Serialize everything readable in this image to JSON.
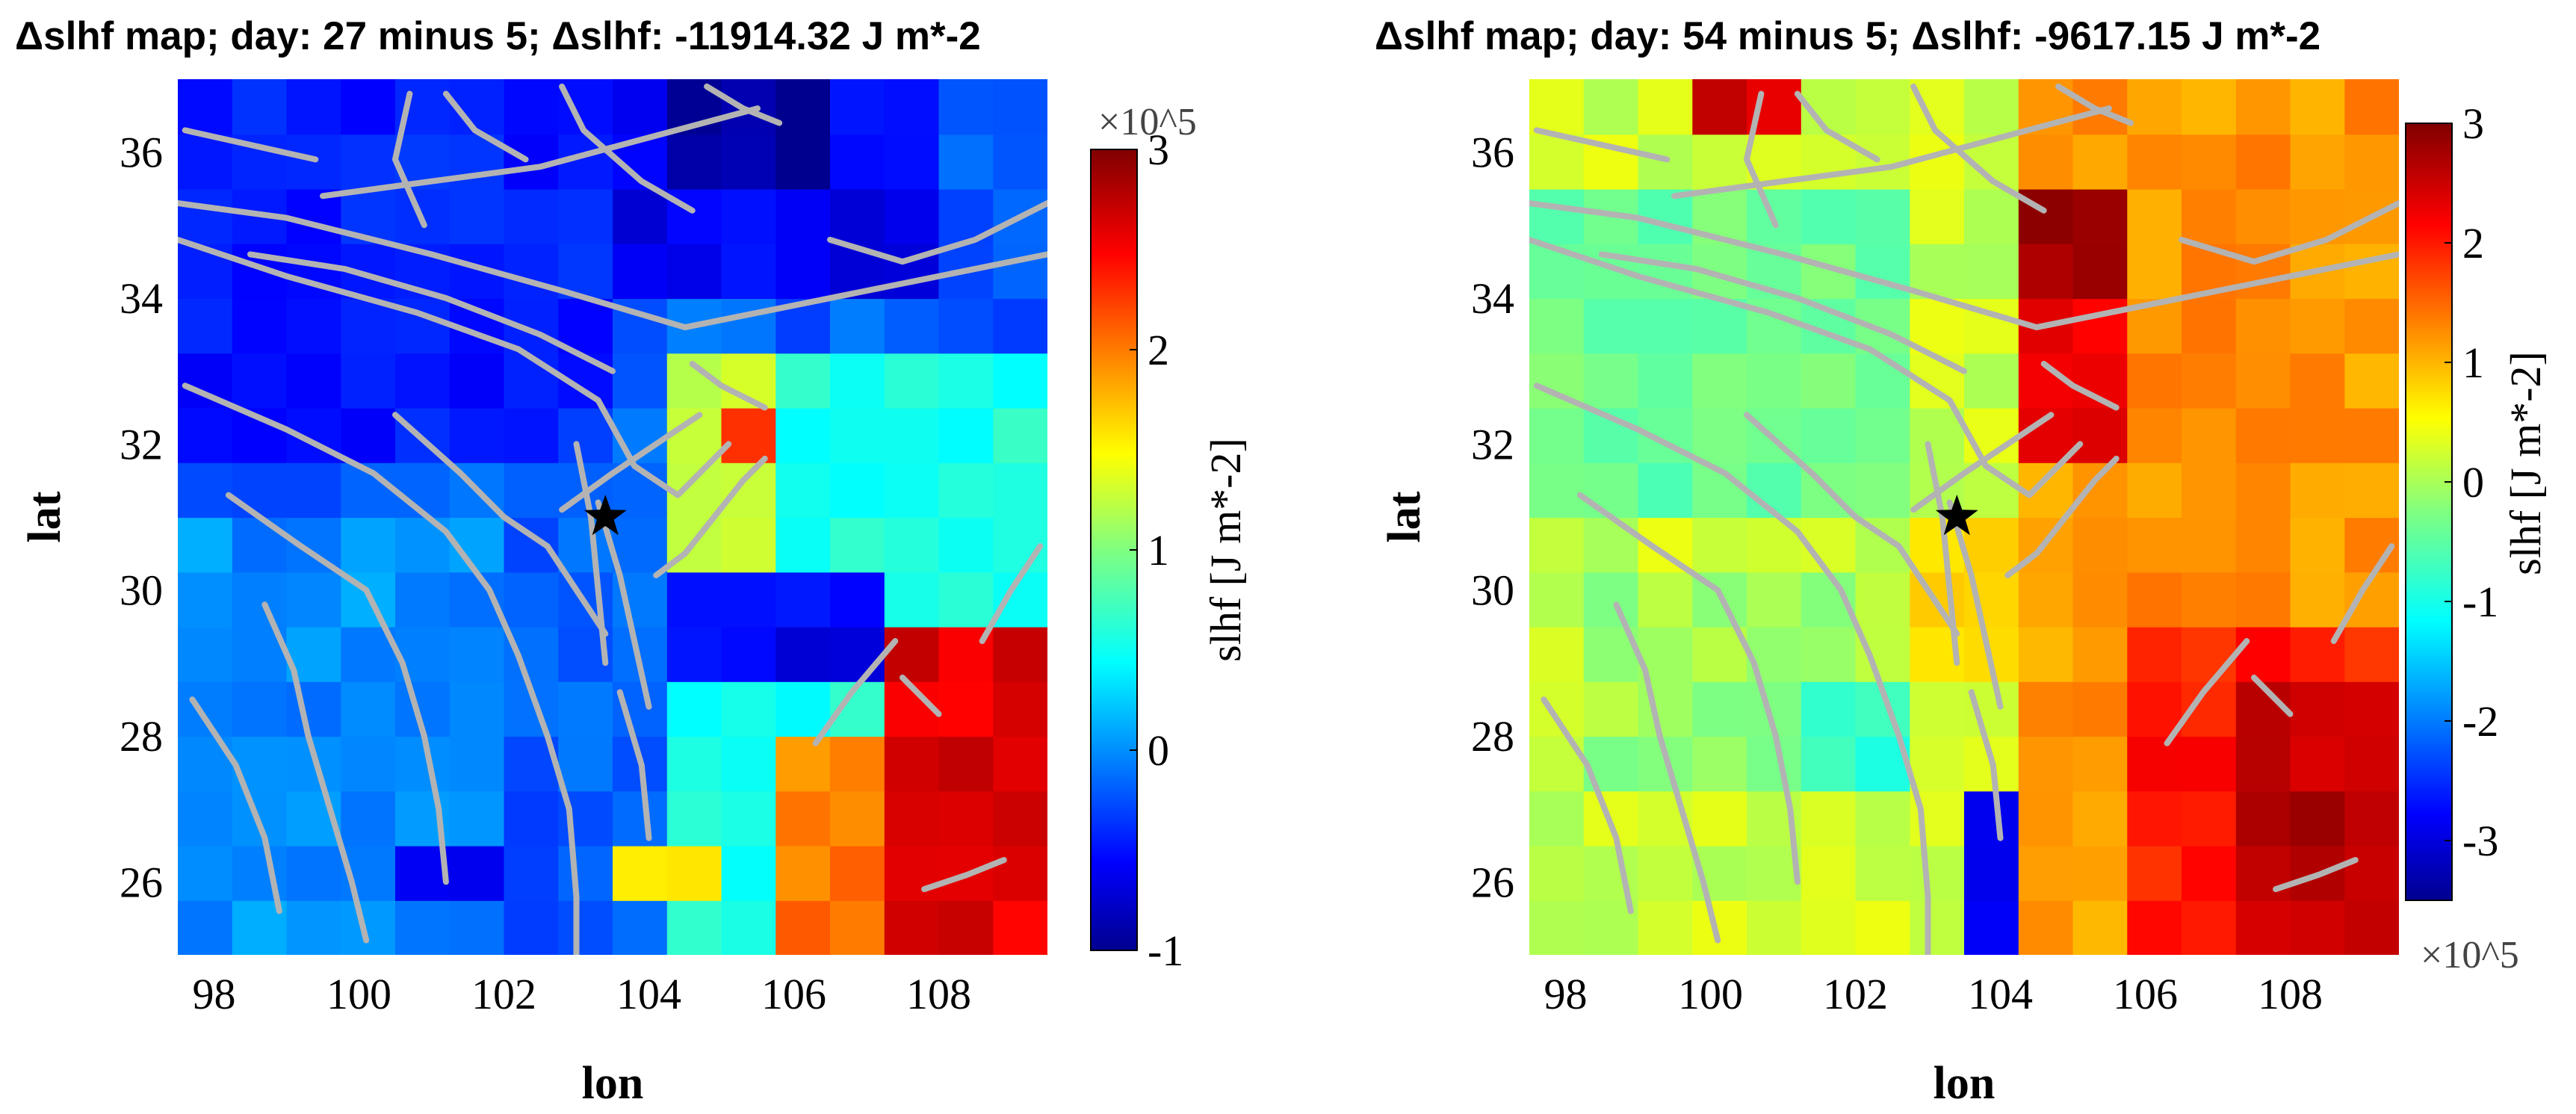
{
  "chart_data": [
    {
      "type": "heatmap",
      "title": "Δslhf map; day: 27 minus 5; Δslhf: -11914.32 J m*-2",
      "xlabel": "lon",
      "ylabel": "lat",
      "xlim": [
        97.5,
        109.5
      ],
      "ylim": [
        25,
        37
      ],
      "xticks": [
        "98",
        "100",
        "102",
        "104",
        "106",
        "108"
      ],
      "yticks": [
        "26",
        "28",
        "30",
        "32",
        "34",
        "36"
      ],
      "colorbar": {
        "label": "slhf [J m*-2]",
        "multiplier": "×10^5",
        "multiplier_position": "top",
        "range": [
          -1,
          3
        ],
        "ticks": [
          "-1",
          "0",
          "1",
          "2",
          "3"
        ]
      },
      "epicenter": {
        "lon": 103.4,
        "lat": 31.0,
        "marker": "star"
      },
      "grid_resolution_deg": 0.75,
      "regions": [
        {
          "lon": [
            97.5,
            109.5
          ],
          "lat": [
            25,
            37
          ],
          "value": -0.2
        },
        {
          "lon": [
            97.5,
            103.5
          ],
          "lat": [
            32,
            37
          ],
          "value": -0.45
        },
        {
          "lon": [
            103.5,
            108
          ],
          "lat": [
            34,
            37
          ],
          "value": -0.6
        },
        {
          "lon": [
            104,
            106.5
          ],
          "lat": [
            35.5,
            37
          ],
          "value": -0.95
        },
        {
          "lon": [
            104,
            109.5
          ],
          "lat": [
            25,
            33
          ],
          "value": 0.55
        },
        {
          "lon": [
            104.5,
            106
          ],
          "lat": [
            30.5,
            33
          ],
          "value": 1.3
        },
        {
          "lon": [
            105.3,
            105.8
          ],
          "lat": [
            31.8,
            32.5
          ],
          "value": 2.4
        },
        {
          "lon": [
            104.5,
            107.5
          ],
          "lat": [
            28.5,
            30
          ],
          "value": -0.6
        },
        {
          "lon": [
            106,
            109.5
          ],
          "lat": [
            25,
            28
          ],
          "value": 2.0
        },
        {
          "lon": [
            107.5,
            109.5
          ],
          "lat": [
            25,
            29.5
          ],
          "value": 2.6
        },
        {
          "lon": [
            103.5,
            105
          ],
          "lat": [
            25.5,
            26.5
          ],
          "value": 1.5
        },
        {
          "lon": [
            97.5,
            102
          ],
          "lat": [
            25,
            31
          ],
          "value": 0.0
        },
        {
          "lon": [
            100.5,
            102
          ],
          "lat": [
            25.5,
            26.5
          ],
          "value": -0.6
        }
      ]
    },
    {
      "type": "heatmap",
      "title": "Δslhf map; day: 54 minus 5; Δslhf: -9617.15 J m*-2",
      "xlabel": "lon",
      "ylabel": "lat",
      "xlim": [
        97.5,
        109.5
      ],
      "ylim": [
        25,
        37
      ],
      "xticks": [
        "98",
        "100",
        "102",
        "104",
        "106",
        "108"
      ],
      "yticks": [
        "26",
        "28",
        "30",
        "32",
        "34",
        "36"
      ],
      "colorbar": {
        "label": "slhf [J m*-2]",
        "multiplier": "×10^5",
        "multiplier_position": "bottom",
        "range": [
          -3.5,
          3
        ],
        "ticks": [
          "-3",
          "-2",
          "-1",
          "0",
          "1",
          "2",
          "3"
        ]
      },
      "epicenter": {
        "lon": 103.4,
        "lat": 31.0,
        "marker": "star"
      },
      "grid_resolution_deg": 0.75,
      "regions": [
        {
          "lon": [
            97.5,
            109.5
          ],
          "lat": [
            25,
            37
          ],
          "value": 0.2
        },
        {
          "lon": [
            97.5,
            103
          ],
          "lat": [
            31,
            35.5
          ],
          "value": -0.4
        },
        {
          "lon": [
            98,
            102
          ],
          "lat": [
            27,
            30
          ],
          "value": -0.1
        },
        {
          "lon": [
            101,
            102.5
          ],
          "lat": [
            27,
            28.5
          ],
          "value": -0.9
        },
        {
          "lon": [
            104,
            109.5
          ],
          "lat": [
            25,
            37
          ],
          "value": 1.2
        },
        {
          "lon": [
            104.5,
            106
          ],
          "lat": [
            32,
            35.5
          ],
          "value": 2.3
        },
        {
          "lon": [
            104.6,
            105.4
          ],
          "lat": [
            34,
            35.3
          ],
          "value": 2.9
        },
        {
          "lon": [
            99.5,
            101
          ],
          "lat": [
            36,
            37
          ],
          "value": 2.5
        },
        {
          "lon": [
            106,
            109.5
          ],
          "lat": [
            25,
            29.5
          ],
          "value": 2.0
        },
        {
          "lon": [
            107.5,
            109.5
          ],
          "lat": [
            25,
            28.5
          ],
          "value": 2.6
        },
        {
          "lon": [
            103.5,
            104.5
          ],
          "lat": [
            25,
            27
          ],
          "value": -3.0
        },
        {
          "lon": [
            102.5,
            104.5
          ],
          "lat": [
            28.5,
            31
          ],
          "value": 0.8
        }
      ]
    }
  ]
}
